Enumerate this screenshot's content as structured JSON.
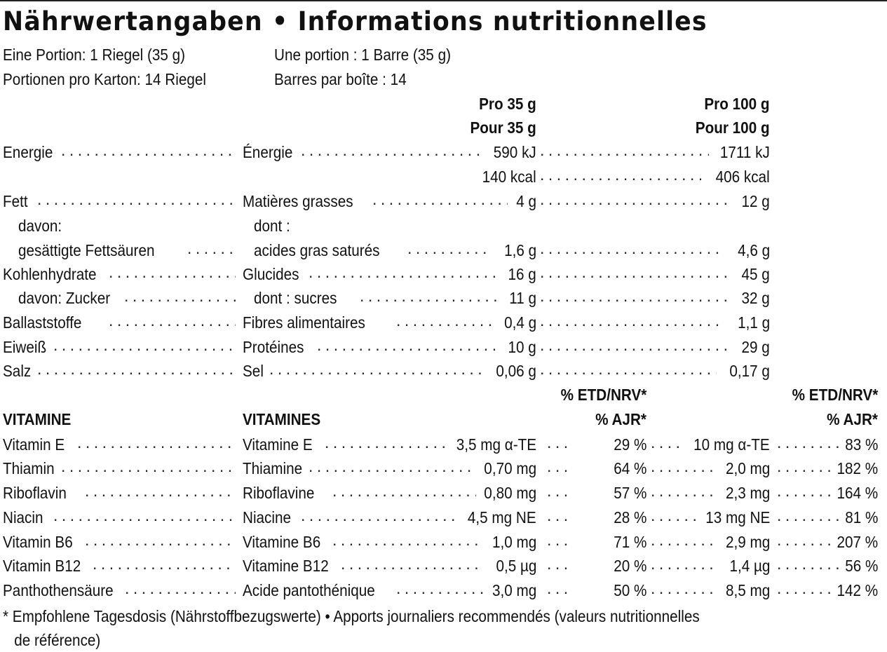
{
  "title": "Nährwertangaben • Informations nutritionnelles",
  "serving": {
    "de_portion": "Eine Portion: 1 Riegel (35 g)",
    "fr_portion": "Une portion : 1 Barre (35 g)",
    "de_per_box": "Portionen pro Karton: 14 Riegel",
    "fr_per_box": "Barres par boîte : 14"
  },
  "headers": {
    "per35_de": "Pro 35 g",
    "per35_fr": "Pour 35 g",
    "per100_de": "Pro 100 g",
    "per100_fr": "Pour 100 g"
  },
  "nutrients": [
    {
      "de": "Energie",
      "fr": "Énergie",
      "v35": "590 kJ",
      "v100": "1711 kJ"
    },
    {
      "de": "",
      "fr": "",
      "v35": "140 kcal",
      "v100": "406 kcal"
    },
    {
      "de": "Fett",
      "fr": "Matières grasses",
      "v35": "4 g",
      "v100": "12 g"
    },
    {
      "de": "davon:",
      "fr": "dont :",
      "v35": "",
      "v100": ""
    },
    {
      "de": "gesättigte Fettsäuren",
      "fr": "acides gras saturés",
      "v35": "1,6 g",
      "v100": "4,6 g"
    },
    {
      "de": "Kohlenhydrate",
      "fr": "Glucides",
      "v35": "16 g",
      "v100": "45 g"
    },
    {
      "de": "davon: Zucker",
      "fr": "dont : sucres",
      "v35": "11 g",
      "v100": "32 g"
    },
    {
      "de": "Ballaststoffe",
      "fr": "Fibres alimentaires",
      "v35": "0,4 g",
      "v100": "1,1 g"
    },
    {
      "de": "Eiweiß",
      "fr": "Protéines",
      "v35": "10 g",
      "v100": "29 g"
    },
    {
      "de": "Salz",
      "fr": "Sel",
      "v35": "0,06 g",
      "v100": "0,17 g"
    }
  ],
  "vitamin_headers": {
    "de": "VITAMINE",
    "fr": "VITAMINES",
    "pct1": "% ETD/NRV*",
    "pct2": "% AJR*"
  },
  "vitamins": [
    {
      "de": "Vitamin E",
      "fr": "Vitamine E",
      "v35": "3,5 mg α-TE",
      "p35": "29 %",
      "v100": "10 mg α-TE",
      "p100": "83 %"
    },
    {
      "de": "Thiamin",
      "fr": "Thiamine",
      "v35": "0,70 mg",
      "p35": "64 %",
      "v100": "2,0 mg",
      "p100": "182 %"
    },
    {
      "de": "Riboflavin",
      "fr": "Riboflavine",
      "v35": "0,80 mg",
      "p35": "57 %",
      "v100": "2,3 mg",
      "p100": "164 %"
    },
    {
      "de": "Niacin",
      "fr": "Niacine",
      "v35": "4,5 mg NE",
      "p35": "28 %",
      "v100": "13 mg NE",
      "p100": "81 %"
    },
    {
      "de": "Vitamin B6",
      "fr": "Vitamine B6",
      "v35": "1,0 mg",
      "p35": "71 %",
      "v100": "2,9 mg",
      "p100": "207 %"
    },
    {
      "de": "Vitamin B12",
      "fr": "Vitamine B12",
      "v35": "0,5 µg",
      "p35": "20 %",
      "v100": "1,4 µg",
      "p100": "56 %"
    },
    {
      "de": "Panthothensäure",
      "fr": "Acide pantothénique",
      "v35": "3,0 mg",
      "p35": "50 %",
      "v100": "8,5 mg",
      "p100": "142 %"
    }
  ],
  "footnote_line1": "* Empfohlene Tagesdosis (Nährstoffbezugswerte) • Apports journaliers recommendés (valeurs nutritionnelles",
  "footnote_line2": "de référence)"
}
